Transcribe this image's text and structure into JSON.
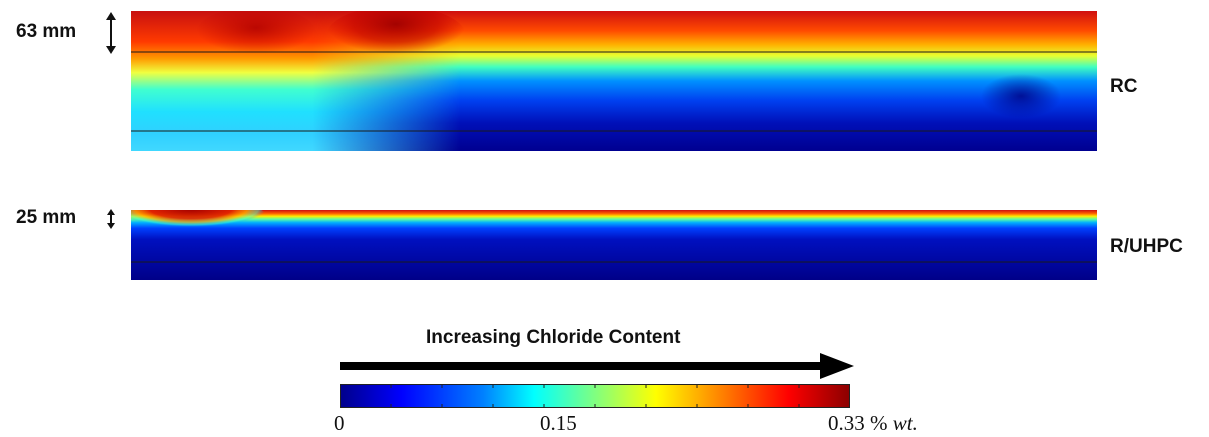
{
  "panels": {
    "rc": {
      "label": "RC",
      "dimension": "63 mm"
    },
    "ruhpc": {
      "label": "R/UHPC",
      "dimension": "25 mm"
    }
  },
  "arrow": {
    "label": "Increasing Chloride Content"
  },
  "colorbar": {
    "tick_min": "0",
    "tick_mid": "0.15",
    "tick_max_value": "0.33",
    "tick_max_unit": "%",
    "tick_max_unit_italic": "wt."
  },
  "colors": {
    "colormap": [
      "#00008b",
      "#0000ff",
      "#0080ff",
      "#00ffff",
      "#80ff80",
      "#ffff00",
      "#ff8000",
      "#ff0000",
      "#8b0000"
    ]
  }
}
